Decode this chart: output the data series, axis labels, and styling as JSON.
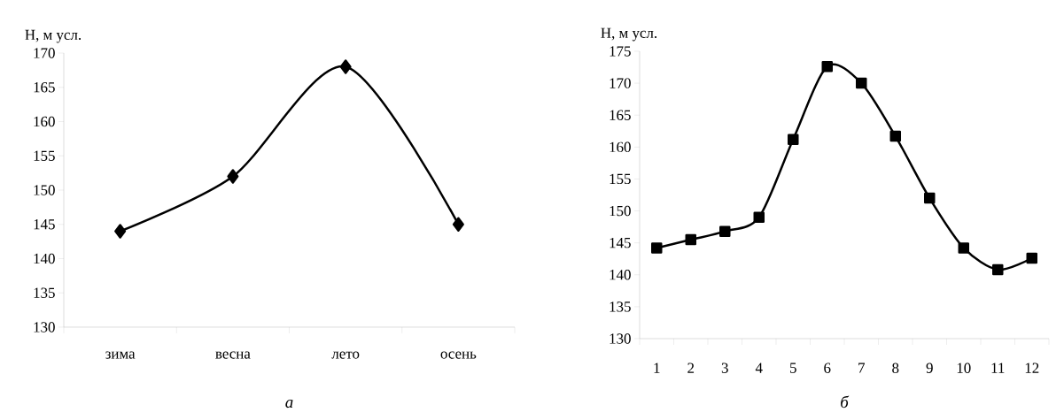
{
  "chart_data": [
    {
      "type": "line",
      "ylabel": "Н, м усл.",
      "categories": [
        "зима",
        "весна",
        "лето",
        "осень"
      ],
      "series": [
        {
          "color": "#000000",
          "values": [
            144,
            152,
            168,
            145
          ]
        }
      ],
      "ylim": [
        130,
        170
      ],
      "yticks": [
        130,
        135,
        140,
        145,
        150,
        155,
        160,
        165,
        170
      ],
      "marker": "diamond",
      "grid": false,
      "annotations": [
        "а"
      ]
    },
    {
      "type": "line",
      "ylabel": "Н, м усл.",
      "categories": [
        "1",
        "2",
        "3",
        "4",
        "5",
        "6",
        "7",
        "8",
        "9",
        "10",
        "11",
        "12"
      ],
      "series": [
        {
          "color": "#000000",
          "values": [
            144.2,
            145.5,
            146.8,
            149,
            161.2,
            172.6,
            170,
            161.7,
            152,
            144.2,
            140.8,
            142.6
          ]
        }
      ],
      "ylim": [
        130,
        175
      ],
      "yticks": [
        130,
        135,
        140,
        145,
        150,
        155,
        160,
        165,
        170,
        175
      ],
      "marker": "square",
      "grid": false,
      "annotations": [
        "б"
      ]
    }
  ]
}
